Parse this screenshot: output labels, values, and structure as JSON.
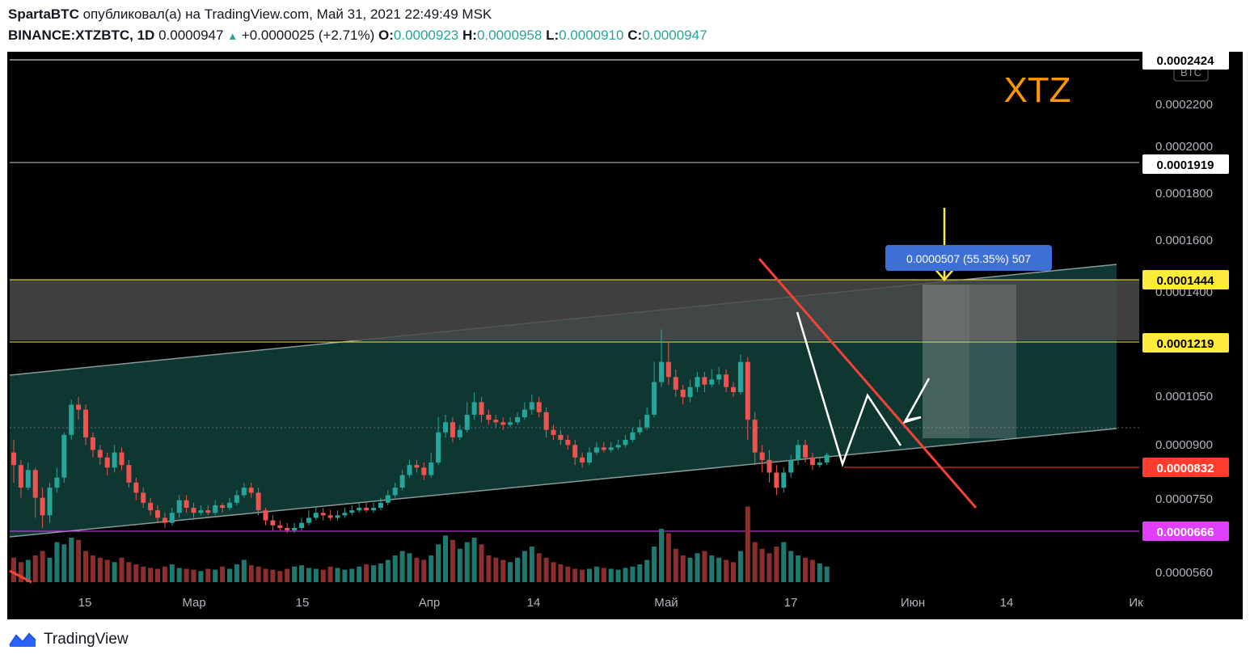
{
  "header": {
    "author": "SpartaBTC",
    "published_text": "опубликовал(а) на TradingView.com, Май 31, 2021 22:49:49 MSK",
    "symbol": "BINANCE:XTZBTC, 1D",
    "last": "0.0000947",
    "change": "+0.0000025 (+2.71%)",
    "o_label": "O:",
    "o": "0.0000923",
    "h_label": "H:",
    "h": "0.0000958",
    "l_label": "L:",
    "l": "0.0000910",
    "c_label": "C:",
    "c": "0.0000947"
  },
  "footer": {
    "brand": "TradingView"
  },
  "colors": {
    "up": "#26a69a",
    "down": "#ef5350",
    "background": "#000000",
    "channel": "#0f3d37",
    "zone": "#4a4a4a",
    "yellow": "#ffeb3b",
    "trendline": "#f44336",
    "magenta": "#e040fb",
    "measure": "#3d6fd6",
    "title": "#ff9800"
  },
  "chart_data": {
    "type": "candlestick",
    "title": "XTZ",
    "currency_badge": "BTC",
    "yaxis_ticks": [
      "0.0002200",
      "0.0002000",
      "0.0001800",
      "0.0001600",
      "0.0001400",
      "0.0001050",
      "0.0000900",
      "0.0000750",
      "0.0000560"
    ],
    "xaxis_ticks": [
      "15",
      "Мар",
      "15",
      "Апр",
      "14",
      "Май",
      "17",
      "Июн",
      "14",
      "Ик"
    ],
    "price_labels": [
      {
        "value": "0.0002424",
        "kind": "white"
      },
      {
        "value": "0.0001919",
        "kind": "white"
      },
      {
        "value": "0.0001444",
        "kind": "yellow"
      },
      {
        "value": "0.0001219",
        "kind": "yellow"
      },
      {
        "value": "0.0000832",
        "kind": "red"
      },
      {
        "value": "0.0000666",
        "kind": "magenta"
      }
    ],
    "measure_label": "0.0000507 (55.35%) 507",
    "candles": [
      [
        1.0,
        0.95,
        1.05,
        0.88
      ],
      [
        0.95,
        0.86,
        0.97,
        0.82
      ],
      [
        0.86,
        0.93,
        0.96,
        0.85
      ],
      [
        0.93,
        0.82,
        0.94,
        0.74
      ],
      [
        0.82,
        0.75,
        0.86,
        0.7
      ],
      [
        0.75,
        0.86,
        0.88,
        0.72
      ],
      [
        0.86,
        0.9,
        0.94,
        0.84
      ],
      [
        0.9,
        1.07,
        1.08,
        0.88
      ],
      [
        1.07,
        1.19,
        1.21,
        1.05
      ],
      [
        1.19,
        1.17,
        1.22,
        1.13
      ],
      [
        1.17,
        1.06,
        1.19,
        1.03
      ],
      [
        1.06,
        1.01,
        1.08,
        0.98
      ],
      [
        1.01,
        0.98,
        1.03,
        0.95
      ],
      [
        0.98,
        0.94,
        1.0,
        0.91
      ],
      [
        0.94,
        1.0,
        1.03,
        0.92
      ],
      [
        1.0,
        0.95,
        1.02,
        0.93
      ],
      [
        0.95,
        0.88,
        0.97,
        0.86
      ],
      [
        0.88,
        0.84,
        0.9,
        0.81
      ],
      [
        0.84,
        0.8,
        0.86,
        0.78
      ],
      [
        0.8,
        0.77,
        0.82,
        0.75
      ],
      [
        0.77,
        0.74,
        0.79,
        0.72
      ],
      [
        0.74,
        0.72,
        0.76,
        0.7
      ],
      [
        0.72,
        0.76,
        0.78,
        0.71
      ],
      [
        0.76,
        0.81,
        0.83,
        0.74
      ],
      [
        0.81,
        0.78,
        0.83,
        0.76
      ],
      [
        0.78,
        0.76,
        0.8,
        0.74
      ],
      [
        0.76,
        0.77,
        0.79,
        0.75
      ],
      [
        0.77,
        0.76,
        0.79,
        0.75
      ],
      [
        0.76,
        0.79,
        0.81,
        0.75
      ],
      [
        0.79,
        0.78,
        0.8,
        0.76
      ],
      [
        0.78,
        0.8,
        0.82,
        0.77
      ],
      [
        0.8,
        0.83,
        0.85,
        0.79
      ],
      [
        0.83,
        0.86,
        0.88,
        0.82
      ],
      [
        0.86,
        0.84,
        0.88,
        0.82
      ],
      [
        0.84,
        0.77,
        0.86,
        0.75
      ],
      [
        0.77,
        0.73,
        0.78,
        0.71
      ],
      [
        0.73,
        0.71,
        0.75,
        0.69
      ],
      [
        0.71,
        0.7,
        0.73,
        0.69
      ],
      [
        0.7,
        0.69,
        0.72,
        0.68
      ],
      [
        0.69,
        0.7,
        0.72,
        0.68
      ],
      [
        0.7,
        0.72,
        0.74,
        0.69
      ],
      [
        0.72,
        0.74,
        0.77,
        0.71
      ],
      [
        0.74,
        0.76,
        0.78,
        0.73
      ],
      [
        0.76,
        0.75,
        0.78,
        0.73
      ],
      [
        0.75,
        0.74,
        0.77,
        0.73
      ],
      [
        0.74,
        0.75,
        0.77,
        0.73
      ],
      [
        0.75,
        0.76,
        0.78,
        0.74
      ],
      [
        0.76,
        0.77,
        0.79,
        0.75
      ],
      [
        0.77,
        0.78,
        0.8,
        0.76
      ],
      [
        0.78,
        0.77,
        0.8,
        0.76
      ],
      [
        0.77,
        0.78,
        0.8,
        0.76
      ],
      [
        0.78,
        0.8,
        0.82,
        0.77
      ],
      [
        0.8,
        0.83,
        0.85,
        0.79
      ],
      [
        0.83,
        0.86,
        0.88,
        0.82
      ],
      [
        0.86,
        0.91,
        0.93,
        0.85
      ],
      [
        0.91,
        0.95,
        0.97,
        0.9
      ],
      [
        0.95,
        0.94,
        0.97,
        0.92
      ],
      [
        0.94,
        0.91,
        0.96,
        0.89
      ],
      [
        0.91,
        0.96,
        1.0,
        0.9
      ],
      [
        0.96,
        1.08,
        1.14,
        0.95
      ],
      [
        1.08,
        1.12,
        1.15,
        1.06
      ],
      [
        1.12,
        1.06,
        1.14,
        1.04
      ],
      [
        1.06,
        1.09,
        1.11,
        1.05
      ],
      [
        1.09,
        1.15,
        1.2,
        1.08
      ],
      [
        1.15,
        1.2,
        1.24,
        1.13
      ],
      [
        1.2,
        1.15,
        1.22,
        1.12
      ],
      [
        1.15,
        1.13,
        1.17,
        1.11
      ],
      [
        1.13,
        1.12,
        1.15,
        1.1
      ],
      [
        1.12,
        1.11,
        1.14,
        1.09
      ],
      [
        1.11,
        1.12,
        1.14,
        1.1
      ],
      [
        1.12,
        1.14,
        1.16,
        1.11
      ],
      [
        1.14,
        1.17,
        1.2,
        1.13
      ],
      [
        1.17,
        1.2,
        1.23,
        1.15
      ],
      [
        1.2,
        1.16,
        1.22,
        1.14
      ],
      [
        1.16,
        1.09,
        1.18,
        1.06
      ],
      [
        1.09,
        1.07,
        1.11,
        1.05
      ],
      [
        1.07,
        1.05,
        1.09,
        1.03
      ],
      [
        1.05,
        1.03,
        1.07,
        1.01
      ],
      [
        1.03,
        0.98,
        1.05,
        0.95
      ],
      [
        0.98,
        0.96,
        1.0,
        0.94
      ],
      [
        0.96,
        1.0,
        1.02,
        0.95
      ],
      [
        1.0,
        1.02,
        1.04,
        0.99
      ],
      [
        1.02,
        1.01,
        1.04,
        1.0
      ],
      [
        1.01,
        1.02,
        1.04,
        1.0
      ],
      [
        1.02,
        1.03,
        1.05,
        1.01
      ],
      [
        1.03,
        1.05,
        1.07,
        1.02
      ],
      [
        1.05,
        1.08,
        1.1,
        1.04
      ],
      [
        1.08,
        1.1,
        1.13,
        1.07
      ],
      [
        1.1,
        1.15,
        1.18,
        1.09
      ],
      [
        1.15,
        1.28,
        1.36,
        1.14
      ],
      [
        1.28,
        1.36,
        1.49,
        1.26
      ],
      [
        1.36,
        1.3,
        1.44,
        1.27
      ],
      [
        1.3,
        1.25,
        1.33,
        1.22
      ],
      [
        1.25,
        1.22,
        1.27,
        1.19
      ],
      [
        1.22,
        1.26,
        1.29,
        1.2
      ],
      [
        1.26,
        1.3,
        1.32,
        1.24
      ],
      [
        1.3,
        1.27,
        1.32,
        1.24
      ],
      [
        1.27,
        1.29,
        1.33,
        1.26
      ],
      [
        1.29,
        1.31,
        1.34,
        1.27
      ],
      [
        1.31,
        1.26,
        1.33,
        1.24
      ],
      [
        1.26,
        1.24,
        1.28,
        1.22
      ],
      [
        1.24,
        1.36,
        1.39,
        1.23
      ],
      [
        1.36,
        1.13,
        1.38,
        1.05
      ],
      [
        1.13,
        1.0,
        1.16,
        0.95
      ],
      [
        1.0,
        0.97,
        1.03,
        0.92
      ],
      [
        0.97,
        0.92,
        1.01,
        0.88
      ],
      [
        0.92,
        0.86,
        0.95,
        0.83
      ],
      [
        0.86,
        0.92,
        0.94,
        0.84
      ],
      [
        0.92,
        0.97,
        0.99,
        0.9
      ],
      [
        0.97,
        1.03,
        1.05,
        0.95
      ],
      [
        1.03,
        0.98,
        1.05,
        0.96
      ],
      [
        0.98,
        0.95,
        1.0,
        0.93
      ],
      [
        0.95,
        0.96,
        0.98,
        0.94
      ],
      [
        0.96,
        0.99,
        1.0,
        0.95
      ]
    ],
    "volumes": [
      0.55,
      0.45,
      0.5,
      0.6,
      0.7,
      0.55,
      0.9,
      0.85,
      1.0,
      0.95,
      0.7,
      0.6,
      0.55,
      0.5,
      0.45,
      0.55,
      0.45,
      0.4,
      0.35,
      0.32,
      0.3,
      0.35,
      0.4,
      0.32,
      0.3,
      0.28,
      0.25,
      0.3,
      0.28,
      0.35,
      0.3,
      0.4,
      0.5,
      0.38,
      0.35,
      0.3,
      0.28,
      0.25,
      0.3,
      0.35,
      0.38,
      0.32,
      0.3,
      0.28,
      0.35,
      0.32,
      0.28,
      0.3,
      0.35,
      0.4,
      0.38,
      0.42,
      0.5,
      0.6,
      0.7,
      0.65,
      0.55,
      0.5,
      0.6,
      0.85,
      1.05,
      0.95,
      0.75,
      0.9,
      1.0,
      0.85,
      0.6,
      0.55,
      0.5,
      0.45,
      0.55,
      0.7,
      0.8,
      0.65,
      0.55,
      0.45,
      0.4,
      0.35,
      0.3,
      0.28,
      0.3,
      0.35,
      0.32,
      0.3,
      0.28,
      0.32,
      0.35,
      0.4,
      0.5,
      0.8,
      1.2,
      1.1,
      0.75,
      0.6,
      0.55,
      0.65,
      0.7,
      0.6,
      0.55,
      0.5,
      0.45,
      0.7,
      1.7,
      0.9,
      0.75,
      0.65,
      0.8,
      0.9,
      0.7,
      0.6,
      0.55,
      0.5,
      0.42,
      0.35
    ]
  }
}
